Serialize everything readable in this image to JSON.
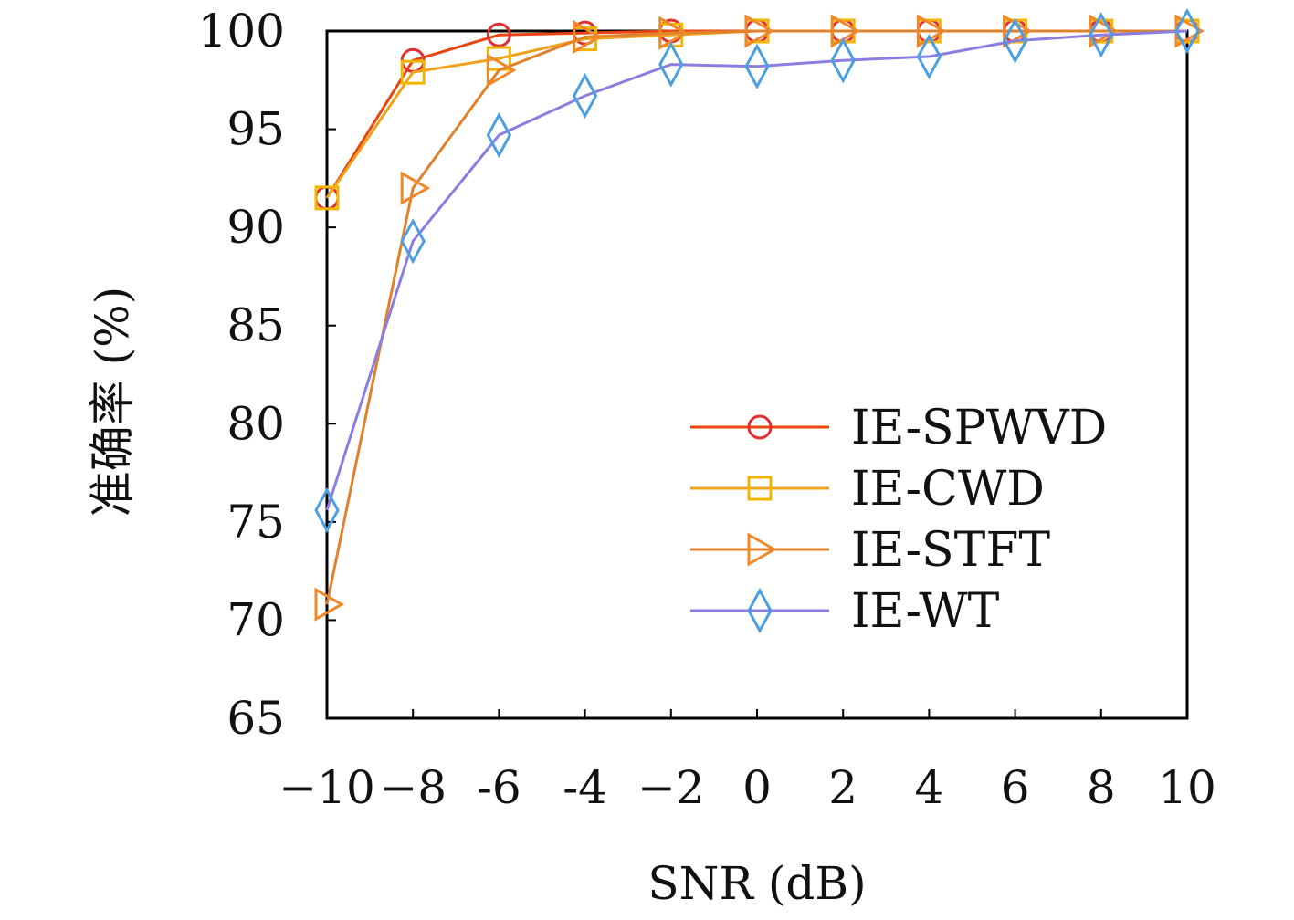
{
  "chart_data": {
    "type": "line",
    "xlabel": "SNR (dB)",
    "ylabel": "准确率 (%)",
    "x": [
      -10,
      -8,
      -6,
      -4,
      -2,
      0,
      2,
      4,
      6,
      8,
      10
    ],
    "x_tick_labels": [
      "−10",
      "−8",
      "-6",
      "-4",
      "−2",
      "0",
      "2",
      "4",
      "6",
      "8",
      "10"
    ],
    "xlim": [
      -10,
      10
    ],
    "ylim": [
      65,
      100
    ],
    "y_ticks": [
      65,
      70,
      75,
      80,
      85,
      90,
      95,
      100
    ],
    "grid": false,
    "legend_position": "lower-right",
    "series": [
      {
        "name": "IE-SPWVD",
        "marker": "circle",
        "line_color": "#e8450f",
        "marker_color": "#e23030",
        "values": [
          91.5,
          98.5,
          99.8,
          99.9,
          100,
          100,
          100,
          100,
          100,
          100,
          100
        ]
      },
      {
        "name": "IE-CWD",
        "marker": "square",
        "line_color": "#f1a21c",
        "marker_color": "#f2b600",
        "values": [
          91.5,
          97.9,
          98.6,
          99.6,
          99.8,
          100,
          100,
          100,
          100,
          100,
          100
        ]
      },
      {
        "name": "IE-STFT",
        "marker": "triangle-right",
        "line_color": "#e0812c",
        "marker_color": "#f0882a",
        "values": [
          70.8,
          92.0,
          98.0,
          99.7,
          99.9,
          100,
          100,
          100,
          100,
          100,
          100
        ]
      },
      {
        "name": "IE-WT",
        "marker": "diamond",
        "line_color": "#8a7fe0",
        "marker_color": "#4d9fe0",
        "values": [
          75.6,
          89.3,
          94.7,
          96.7,
          98.3,
          98.2,
          98.5,
          98.7,
          99.5,
          99.8,
          100
        ]
      }
    ]
  }
}
